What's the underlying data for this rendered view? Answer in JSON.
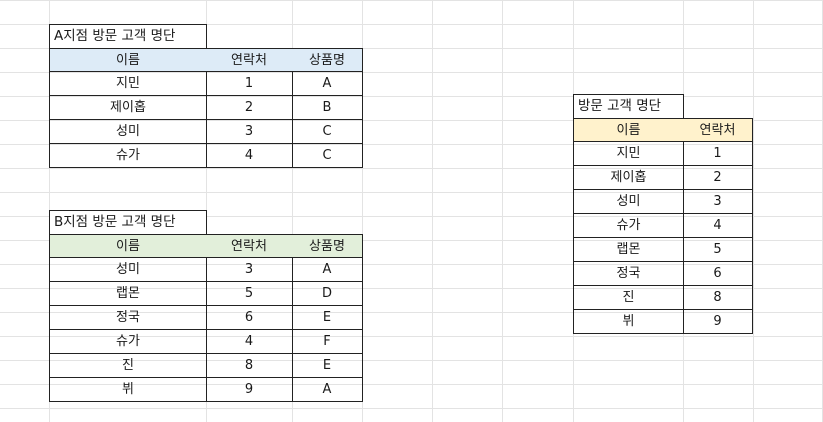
{
  "table_a": {
    "title": "A지점 방문 고객 명단",
    "header_color": "#DDEBF7",
    "headers": [
      "이름",
      "연락처",
      "상품명"
    ],
    "rows": [
      [
        "지민",
        "1",
        "A"
      ],
      [
        "제이홉",
        "2",
        "B"
      ],
      [
        "성미",
        "3",
        "C"
      ],
      [
        "슈가",
        "4",
        "C"
      ]
    ]
  },
  "table_b": {
    "title": "B지점 방문 고객 명단",
    "header_color": "#E2EFDA",
    "headers": [
      "이름",
      "연락처",
      "상품명"
    ],
    "rows": [
      [
        "성미",
        "3",
        "A"
      ],
      [
        "랩몬",
        "5",
        "D"
      ],
      [
        "정국",
        "6",
        "E"
      ],
      [
        "슈가",
        "4",
        "F"
      ],
      [
        "진",
        "8",
        "E"
      ],
      [
        "뷔",
        "9",
        "A"
      ]
    ]
  },
  "table_c": {
    "title": "방문 고객 명단",
    "header_color": "#FFF2CC",
    "headers": [
      "이름",
      "연락처"
    ],
    "rows": [
      [
        "지민",
        "1"
      ],
      [
        "제이홉",
        "2"
      ],
      [
        "성미",
        "3"
      ],
      [
        "슈가",
        "4"
      ],
      [
        "랩몬",
        "5"
      ],
      [
        "정국",
        "6"
      ],
      [
        "진",
        "8"
      ],
      [
        "뷔",
        "9"
      ]
    ]
  }
}
